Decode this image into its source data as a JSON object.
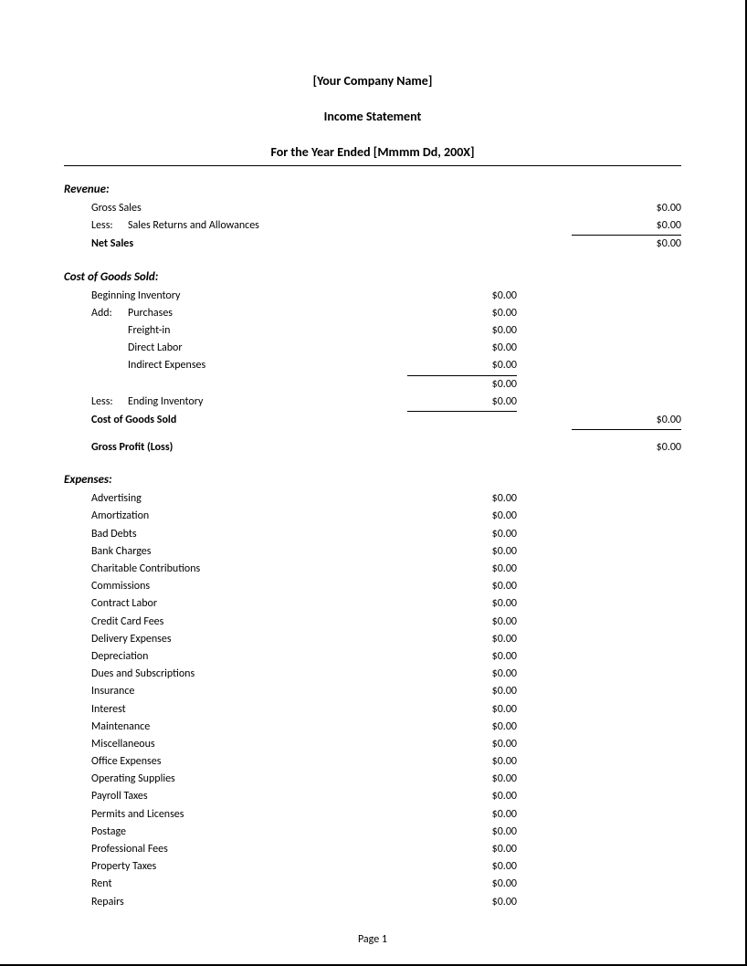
{
  "header": {
    "company_name": "[Your Company Name]",
    "doc_title": "Income Statement",
    "period": "For the Year Ended [Mmmm Dd, 200X]"
  },
  "revenue": {
    "title": "Revenue:",
    "gross_sales": {
      "label": "Gross Sales",
      "value": "$0.00"
    },
    "less_label": "Less:",
    "returns": {
      "label": "Sales Returns and Allowances",
      "value": "$0.00"
    },
    "net_sales": {
      "label": "Net Sales",
      "value": "$0.00"
    }
  },
  "cogs": {
    "title": "Cost of Goods Sold:",
    "beginning_inventory": {
      "label": "Beginning Inventory",
      "value": "$0.00"
    },
    "add_label": "Add:",
    "purchases": {
      "label": "Purchases",
      "value": "$0.00"
    },
    "freight_in": {
      "label": "Freight-in",
      "value": "$0.00"
    },
    "direct_labor": {
      "label": "Direct Labor",
      "value": "$0.00"
    },
    "indirect_expenses": {
      "label": "Indirect Expenses",
      "value": "$0.00"
    },
    "subtotal": {
      "value": "$0.00"
    },
    "less_label": "Less:",
    "ending_inventory": {
      "label": "Ending Inventory",
      "value": "$0.00"
    },
    "total": {
      "label": "Cost of Goods Sold",
      "value": "$0.00"
    },
    "gross_profit": {
      "label": "Gross Profit (Loss)",
      "value": "$0.00"
    }
  },
  "expenses": {
    "title": "Expenses:",
    "items": [
      {
        "label": "Advertising",
        "value": "$0.00"
      },
      {
        "label": "Amortization",
        "value": "$0.00"
      },
      {
        "label": "Bad Debts",
        "value": "$0.00"
      },
      {
        "label": "Bank Charges",
        "value": "$0.00"
      },
      {
        "label": "Charitable Contributions",
        "value": "$0.00"
      },
      {
        "label": "Commissions",
        "value": "$0.00"
      },
      {
        "label": "Contract Labor",
        "value": "$0.00"
      },
      {
        "label": "Credit Card Fees",
        "value": "$0.00"
      },
      {
        "label": "Delivery Expenses",
        "value": "$0.00"
      },
      {
        "label": "Depreciation",
        "value": "$0.00"
      },
      {
        "label": "Dues and Subscriptions",
        "value": "$0.00"
      },
      {
        "label": "Insurance",
        "value": "$0.00"
      },
      {
        "label": "Interest",
        "value": "$0.00"
      },
      {
        "label": "Maintenance",
        "value": "$0.00"
      },
      {
        "label": "Miscellaneous",
        "value": "$0.00"
      },
      {
        "label": "Office Expenses",
        "value": "$0.00"
      },
      {
        "label": "Operating Supplies",
        "value": "$0.00"
      },
      {
        "label": "Payroll Taxes",
        "value": "$0.00"
      },
      {
        "label": "Permits and Licenses",
        "value": "$0.00"
      },
      {
        "label": "Postage",
        "value": "$0.00"
      },
      {
        "label": "Professional Fees",
        "value": "$0.00"
      },
      {
        "label": "Property Taxes",
        "value": "$0.00"
      },
      {
        "label": "Rent",
        "value": "$0.00"
      },
      {
        "label": "Repairs",
        "value": "$0.00"
      }
    ]
  },
  "footer": {
    "page_number": "Page 1"
  }
}
